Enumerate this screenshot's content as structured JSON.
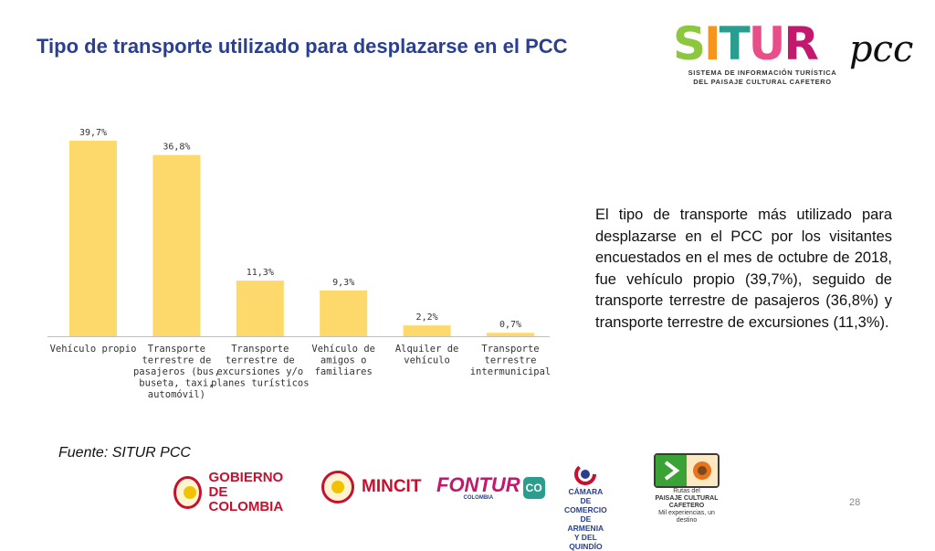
{
  "title": "Tipo de transporte utilizado para desplazarse en el PCC",
  "logo": {
    "word_letters": [
      "S",
      "I",
      "T",
      "U",
      "R"
    ],
    "word_colors": [
      "#8dc63f",
      "#f7941d",
      "#2a9d8f",
      "#e94e8a",
      "#c2186d"
    ],
    "pcc": "pcc",
    "subtitle_line1": "SISTEMA DE INFORMACIÓN TURÍSTICA",
    "subtitle_line2": "DEL PAISAJE CULTURAL CAFETERO"
  },
  "chart_data": {
    "type": "bar",
    "title": "",
    "categories": [
      [
        "Vehículo propio"
      ],
      [
        "Transporte",
        "terrestre de",
        "pasajeros (bus,",
        "buseta, taxi,",
        "automóvil)"
      ],
      [
        "Transporte",
        "terrestre de",
        "excursiones y/o",
        "planes turísticos"
      ],
      [
        "Vehículo de",
        "amigos o",
        "familiares"
      ],
      [
        "Alquiler de",
        "vehículo"
      ],
      [
        "Transporte",
        "terrestre",
        "intermunicipal"
      ]
    ],
    "values": [
      39.7,
      36.8,
      11.3,
      9.3,
      2.2,
      0.7
    ],
    "labels": [
      "39,7%",
      "36,8%",
      "11,3%",
      "9,3%",
      "2,2%",
      "0,7%"
    ],
    "ylim": [
      0,
      39.7
    ],
    "bar_color": "#fdd96b",
    "grid": false
  },
  "description": "El tipo de transporte más utilizado para desplazarse en el PCC por los visitantes encuestados en el mes de octubre de 2018, fue vehículo propio (39,7%), seguido de transporte terrestre de pasajeros (36,8%) y transporte terrestre de excursiones (11,3%).",
  "source": "Fuente: SITUR PCC",
  "page_number": "28",
  "footer": {
    "gobierno_line1": "GOBIERNO",
    "gobierno_line2": "DE COLOMBIA",
    "mincit": "MINCIT",
    "fontur": "FONTUR",
    "fontur_sub": "COLOMBIA",
    "co_badge": "CO",
    "camara_line1": "CÁMARA DE COMERCIO",
    "camara_line2": "DE ARMENIA Y DEL QUINDÍO",
    "rutas_line1": "Rutas del",
    "rutas_line2": "PAISAJE CULTURAL CAFETERO",
    "rutas_line3": "Mil experiencias, un destino"
  }
}
